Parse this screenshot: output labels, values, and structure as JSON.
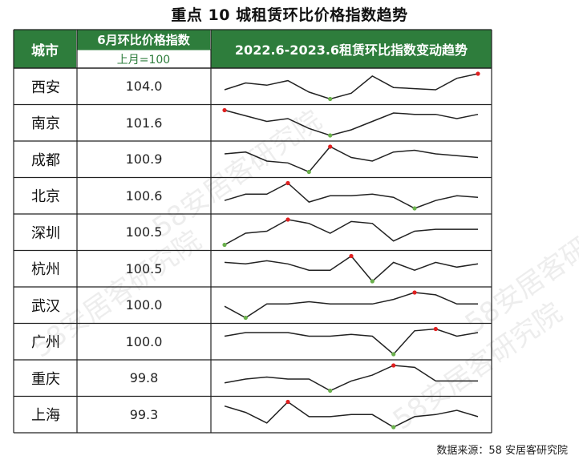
{
  "title": "重点 10 城租赁环比价格指数趋势",
  "header": {
    "city": "城市",
    "index": "6月环比价格指数",
    "base": "上月=100",
    "trend": "2022.6-2023.6租赁环比指数变动趋势"
  },
  "source": "数据来源：58 安居客研究院",
  "watermark": "58安居客研究院",
  "colors": {
    "header_green": "#2e7d3c",
    "max_marker": "#e02020",
    "min_marker": "#6ab04c",
    "line": "#222222"
  },
  "chart_data": {
    "type": "table",
    "columns": [
      "城市",
      "6月环比价格指数",
      "2022.6-2023.6租赁环比指数变动趋势"
    ],
    "rows": [
      {
        "city": "西安",
        "value": "104.0",
        "trend": [
          100.6,
          101.2,
          101.0,
          101.4,
          100.4,
          99.8,
          100.3,
          101.8,
          100.8,
          100.7,
          100.6,
          101.6,
          102.0
        ]
      },
      {
        "city": "南京",
        "value": "101.6",
        "trend": [
          101.2,
          100.8,
          100.4,
          100.6,
          99.9,
          99.4,
          99.8,
          100.4,
          101.0,
          100.9,
          100.9,
          100.6,
          100.9
        ]
      },
      {
        "city": "成都",
        "value": "100.9",
        "trend": [
          100.6,
          100.7,
          100.2,
          100.1,
          99.6,
          101.0,
          100.4,
          100.2,
          100.7,
          100.8,
          100.6,
          100.5,
          100.4
        ]
      },
      {
        "city": "北京",
        "value": "100.6",
        "trend": [
          100.2,
          100.6,
          100.6,
          101.3,
          100.1,
          100.5,
          100.5,
          100.6,
          100.4,
          99.7,
          100.2,
          100.5,
          100.4
        ]
      },
      {
        "city": "深圳",
        "value": "100.5",
        "trend": [
          99.5,
          100.1,
          100.2,
          100.8,
          100.6,
          100.1,
          100.7,
          100.6,
          99.7,
          100.2,
          100.3,
          100.3,
          100.3
        ]
      },
      {
        "city": "杭州",
        "value": "100.5",
        "trend": [
          100.7,
          100.6,
          100.8,
          100.6,
          100.2,
          100.2,
          101.1,
          99.5,
          100.7,
          100.2,
          100.7,
          100.4,
          100.6
        ]
      },
      {
        "city": "武汉",
        "value": "100.0",
        "trend": [
          100.3,
          99.8,
          100.4,
          100.4,
          100.5,
          100.4,
          100.4,
          100.4,
          100.6,
          100.9,
          100.8,
          100.4,
          100.4
        ]
      },
      {
        "city": "广州",
        "value": "100.0",
        "trend": [
          100.5,
          100.7,
          100.7,
          100.7,
          100.5,
          100.5,
          100.6,
          100.5,
          99.5,
          100.8,
          100.9,
          100.5,
          100.7
        ]
      },
      {
        "city": "重庆",
        "value": "99.8",
        "trend": [
          100.3,
          100.5,
          100.6,
          100.5,
          100.5,
          99.9,
          100.4,
          100.7,
          101.2,
          101.1,
          100.4,
          100.4,
          100.4
        ]
      },
      {
        "city": "上海",
        "value": "99.3",
        "trend": [
          100.4,
          100.1,
          99.6,
          100.6,
          99.9,
          99.9,
          100.0,
          100.0,
          99.4,
          99.9,
          100.0,
          100.2,
          99.9
        ]
      }
    ]
  }
}
